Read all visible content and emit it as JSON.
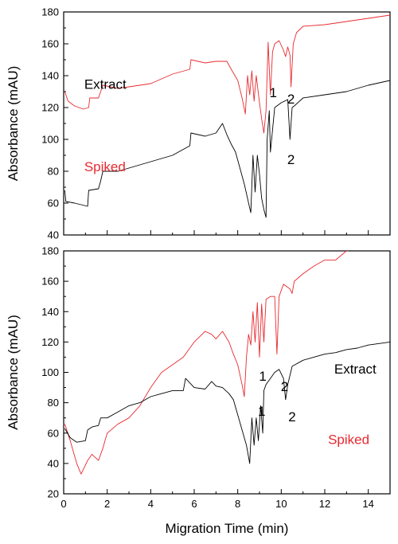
{
  "chart_data": [
    {
      "type": "line",
      "panel": "top",
      "xlim": [
        0,
        15
      ],
      "ylim": [
        40,
        180
      ],
      "x_ticks": [],
      "y_ticks": [
        "40",
        "60",
        "80",
        "100",
        "120",
        "140",
        "160",
        "180"
      ],
      "ylabel": "Absorbance (mAU)",
      "grid": false,
      "series": [
        {
          "name": "Spiked",
          "color": "#e8292f",
          "points": [
            [
              0.05,
              130
            ],
            [
              0.2,
              124
            ],
            [
              0.5,
              121
            ],
            [
              0.9,
              119
            ],
            [
              1.15,
              120
            ],
            [
              1.2,
              126
            ],
            [
              1.6,
              126
            ],
            [
              1.7,
              130
            ],
            [
              1.8,
              134
            ],
            [
              2.5,
              132
            ],
            [
              3.0,
              133
            ],
            [
              4.0,
              135
            ],
            [
              5.0,
              141
            ],
            [
              5.8,
              144
            ],
            [
              5.85,
              150
            ],
            [
              6.5,
              148
            ],
            [
              7.0,
              149
            ],
            [
              7.5,
              149
            ],
            [
              7.7,
              144
            ],
            [
              8.0,
              137
            ],
            [
              8.2,
              126
            ],
            [
              8.35,
              116
            ],
            [
              8.45,
              140
            ],
            [
              8.55,
              128
            ],
            [
              8.65,
              143
            ],
            [
              8.75,
              124
            ],
            [
              8.85,
              140
            ],
            [
              9.0,
              123
            ],
            [
              9.1,
              113
            ],
            [
              9.2,
              104
            ],
            [
              9.3,
              118
            ],
            [
              9.4,
              161
            ],
            [
              9.5,
              128
            ],
            [
              9.6,
              155
            ],
            [
              9.7,
              160
            ],
            [
              9.9,
              162
            ],
            [
              10.1,
              156
            ],
            [
              10.2,
              152
            ],
            [
              10.3,
              158
            ],
            [
              10.4,
              153
            ],
            [
              10.45,
              133
            ],
            [
              10.55,
              160
            ],
            [
              10.7,
              167
            ],
            [
              11.0,
              171
            ],
            [
              12.0,
              172
            ],
            [
              13.0,
              174
            ],
            [
              14.0,
              176
            ],
            [
              15.0,
              178
            ]
          ]
        },
        {
          "name": "Extract",
          "color": "#000000",
          "points": [
            [
              0.05,
              68
            ],
            [
              0.1,
              61
            ],
            [
              0.5,
              60
            ],
            [
              1.1,
              58
            ],
            [
              1.15,
              68
            ],
            [
              1.6,
              69
            ],
            [
              1.7,
              74
            ],
            [
              1.8,
              80
            ],
            [
              2.5,
              80
            ],
            [
              3.0,
              82
            ],
            [
              4.0,
              86
            ],
            [
              5.0,
              90
            ],
            [
              5.8,
              96
            ],
            [
              5.85,
              104
            ],
            [
              6.5,
              102
            ],
            [
              7.0,
              104
            ],
            [
              7.3,
              110
            ],
            [
              7.5,
              103
            ],
            [
              7.7,
              97
            ],
            [
              7.9,
              92
            ],
            [
              8.1,
              82
            ],
            [
              8.3,
              72
            ],
            [
              8.5,
              60
            ],
            [
              8.6,
              54
            ],
            [
              8.7,
              90
            ],
            [
              8.8,
              67
            ],
            [
              8.9,
              90
            ],
            [
              9.0,
              78
            ],
            [
              9.1,
              63
            ],
            [
              9.2,
              56
            ],
            [
              9.3,
              51
            ],
            [
              9.35,
              100
            ],
            [
              9.45,
              118
            ],
            [
              9.5,
              92
            ],
            [
              9.7,
              120
            ],
            [
              10.0,
              123
            ],
            [
              10.3,
              125
            ],
            [
              10.4,
              100
            ],
            [
              10.5,
              120
            ],
            [
              10.6,
              121
            ],
            [
              11.0,
              126
            ],
            [
              12.0,
              128
            ],
            [
              13.0,
              130
            ],
            [
              14.0,
              134
            ],
            [
              15.0,
              137
            ]
          ]
        }
      ],
      "annotations": [
        {
          "text": "Spiked",
          "color": "#e8292f"
        },
        {
          "text": "Extract",
          "color": "#000000"
        },
        {
          "text": "1",
          "color": "#000000"
        },
        {
          "text": "2",
          "color": "#000000"
        },
        {
          "text": "2",
          "color": "#000000"
        }
      ]
    },
    {
      "type": "line",
      "panel": "bottom",
      "xlim": [
        0,
        15
      ],
      "ylim": [
        20,
        180
      ],
      "x_ticks": [
        "0",
        "2",
        "4",
        "6",
        "8",
        "10",
        "12",
        "14"
      ],
      "y_ticks": [
        "20",
        "40",
        "60",
        "80",
        "100",
        "120",
        "140",
        "160",
        "180"
      ],
      "xlabel": "Migration Time (min)",
      "ylabel": "Absorbance (mAU)",
      "grid": false,
      "series": [
        {
          "name": "Spiked",
          "color": "#e8292f",
          "points": [
            [
              0.05,
              66
            ],
            [
              0.3,
              55
            ],
            [
              0.6,
              40
            ],
            [
              0.8,
              33
            ],
            [
              1.1,
              42
            ],
            [
              1.3,
              46
            ],
            [
              1.6,
              42
            ],
            [
              1.8,
              50
            ],
            [
              2.0,
              60
            ],
            [
              2.5,
              66
            ],
            [
              3.0,
              70
            ],
            [
              3.5,
              78
            ],
            [
              4.0,
              90
            ],
            [
              4.5,
              100
            ],
            [
              5.0,
              105
            ],
            [
              5.5,
              110
            ],
            [
              6.0,
              120
            ],
            [
              6.5,
              127
            ],
            [
              6.8,
              125
            ],
            [
              7.0,
              122
            ],
            [
              7.3,
              127
            ],
            [
              7.6,
              120
            ],
            [
              7.8,
              112
            ],
            [
              8.0,
              105
            ],
            [
              8.2,
              92
            ],
            [
              8.3,
              84
            ],
            [
              8.4,
              110
            ],
            [
              8.5,
              125
            ],
            [
              8.6,
              118
            ],
            [
              8.7,
              140
            ],
            [
              8.8,
              120
            ],
            [
              8.9,
              146
            ],
            [
              9.0,
              110
            ],
            [
              9.1,
              145
            ],
            [
              9.2,
              120
            ],
            [
              9.3,
              148
            ],
            [
              9.5,
              150
            ],
            [
              9.7,
              150
            ],
            [
              9.8,
              112
            ],
            [
              9.9,
              150
            ],
            [
              10.1,
              158
            ],
            [
              10.4,
              155
            ],
            [
              10.5,
              152
            ],
            [
              10.6,
              160
            ],
            [
              11.0,
              165
            ],
            [
              11.5,
              170
            ],
            [
              12.0,
              174
            ],
            [
              12.5,
              174
            ],
            [
              13.0,
              180
            ],
            [
              13.5,
              181
            ],
            [
              14.0,
              185
            ],
            [
              14.5,
              187
            ],
            [
              15.0,
              191
            ]
          ]
        },
        {
          "name": "Extract",
          "color": "#000000",
          "points": [
            [
              0.05,
              63
            ],
            [
              0.3,
              57
            ],
            [
              0.6,
              54
            ],
            [
              1.0,
              55
            ],
            [
              1.1,
              62
            ],
            [
              1.3,
              64
            ],
            [
              1.6,
              65
            ],
            [
              1.7,
              70
            ],
            [
              2.0,
              70
            ],
            [
              2.5,
              74
            ],
            [
              3.0,
              78
            ],
            [
              3.5,
              80
            ],
            [
              4.0,
              84
            ],
            [
              4.5,
              86
            ],
            [
              5.0,
              88
            ],
            [
              5.5,
              88
            ],
            [
              5.6,
              96
            ],
            [
              6.0,
              90
            ],
            [
              6.5,
              89
            ],
            [
              6.8,
              94
            ],
            [
              7.0,
              91
            ],
            [
              7.3,
              90
            ],
            [
              7.6,
              86
            ],
            [
              7.8,
              82
            ],
            [
              8.0,
              72
            ],
            [
              8.2,
              62
            ],
            [
              8.4,
              52
            ],
            [
              8.55,
              40
            ],
            [
              8.65,
              70
            ],
            [
              8.75,
              52
            ],
            [
              8.85,
              70
            ],
            [
              8.95,
              55
            ],
            [
              9.05,
              78
            ],
            [
              9.15,
              60
            ],
            [
              9.2,
              88
            ],
            [
              9.3,
              92
            ],
            [
              9.5,
              96
            ],
            [
              9.7,
              100
            ],
            [
              9.9,
              102
            ],
            [
              10.1,
              96
            ],
            [
              10.2,
              82
            ],
            [
              10.3,
              92
            ],
            [
              10.5,
              104
            ],
            [
              11.0,
              108
            ],
            [
              11.5,
              110
            ],
            [
              12.0,
              112
            ],
            [
              12.5,
              113
            ],
            [
              13.0,
              115
            ],
            [
              13.5,
              116
            ],
            [
              14.0,
              118
            ],
            [
              15.0,
              120
            ]
          ]
        }
      ],
      "annotations": [
        {
          "text": "Spiked",
          "color": "#e8292f"
        },
        {
          "text": "Extract",
          "color": "#000000"
        },
        {
          "text": "1",
          "color": "#000000"
        },
        {
          "text": "2",
          "color": "#000000"
        },
        {
          "text": "1",
          "color": "#000000"
        },
        {
          "text": "2",
          "color": "#000000"
        }
      ]
    }
  ]
}
